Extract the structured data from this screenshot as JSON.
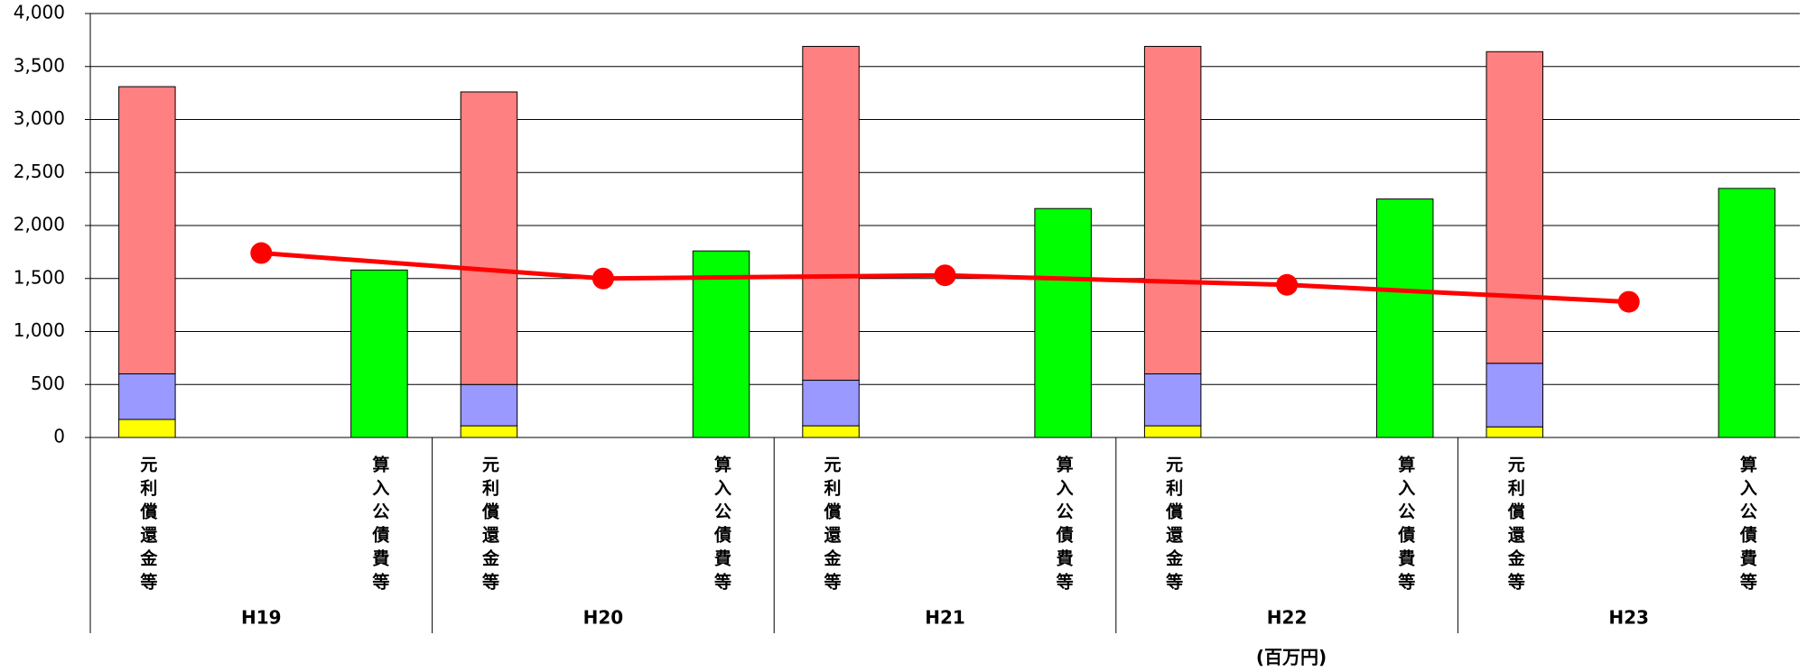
{
  "chart_data": {
    "type": "bar",
    "unit_note": "(百万円)",
    "categories": [
      "H19",
      "H20",
      "H21",
      "H22",
      "H23"
    ],
    "stacks": [
      {
        "label": "元利償還金等",
        "series": [
          {
            "color": "#ffff00",
            "values": [
              170,
              110,
              110,
              110,
              100
            ]
          },
          {
            "color": "#9999ff",
            "values": [
              430,
              390,
              430,
              490,
              600
            ]
          },
          {
            "color": "#ff8080",
            "values": [
              2710,
              2760,
              3150,
              3090,
              2940
            ]
          }
        ]
      },
      {
        "label": "算入公債費等",
        "series": [
          {
            "color": "#00ff00",
            "values": [
              1580,
              1760,
              2160,
              2250,
              2350
            ]
          }
        ]
      }
    ],
    "line": {
      "color": "#ff0000",
      "values": [
        1740,
        1500,
        1530,
        1440,
        1280
      ]
    },
    "ylim": [
      0,
      4000
    ],
    "yticks": [
      0,
      500,
      {
        "value": 1000,
        "label": "1,000"
      },
      {
        "value": 1500,
        "label": "1,500"
      },
      {
        "value": 2000,
        "label": "2,000"
      },
      {
        "value": 2500,
        "label": "2,500"
      },
      {
        "value": 3000,
        "label": "3,000"
      },
      {
        "value": 3500,
        "label": "3,500"
      },
      {
        "value": 4000,
        "label": "4,000"
      }
    ],
    "grid": true
  }
}
